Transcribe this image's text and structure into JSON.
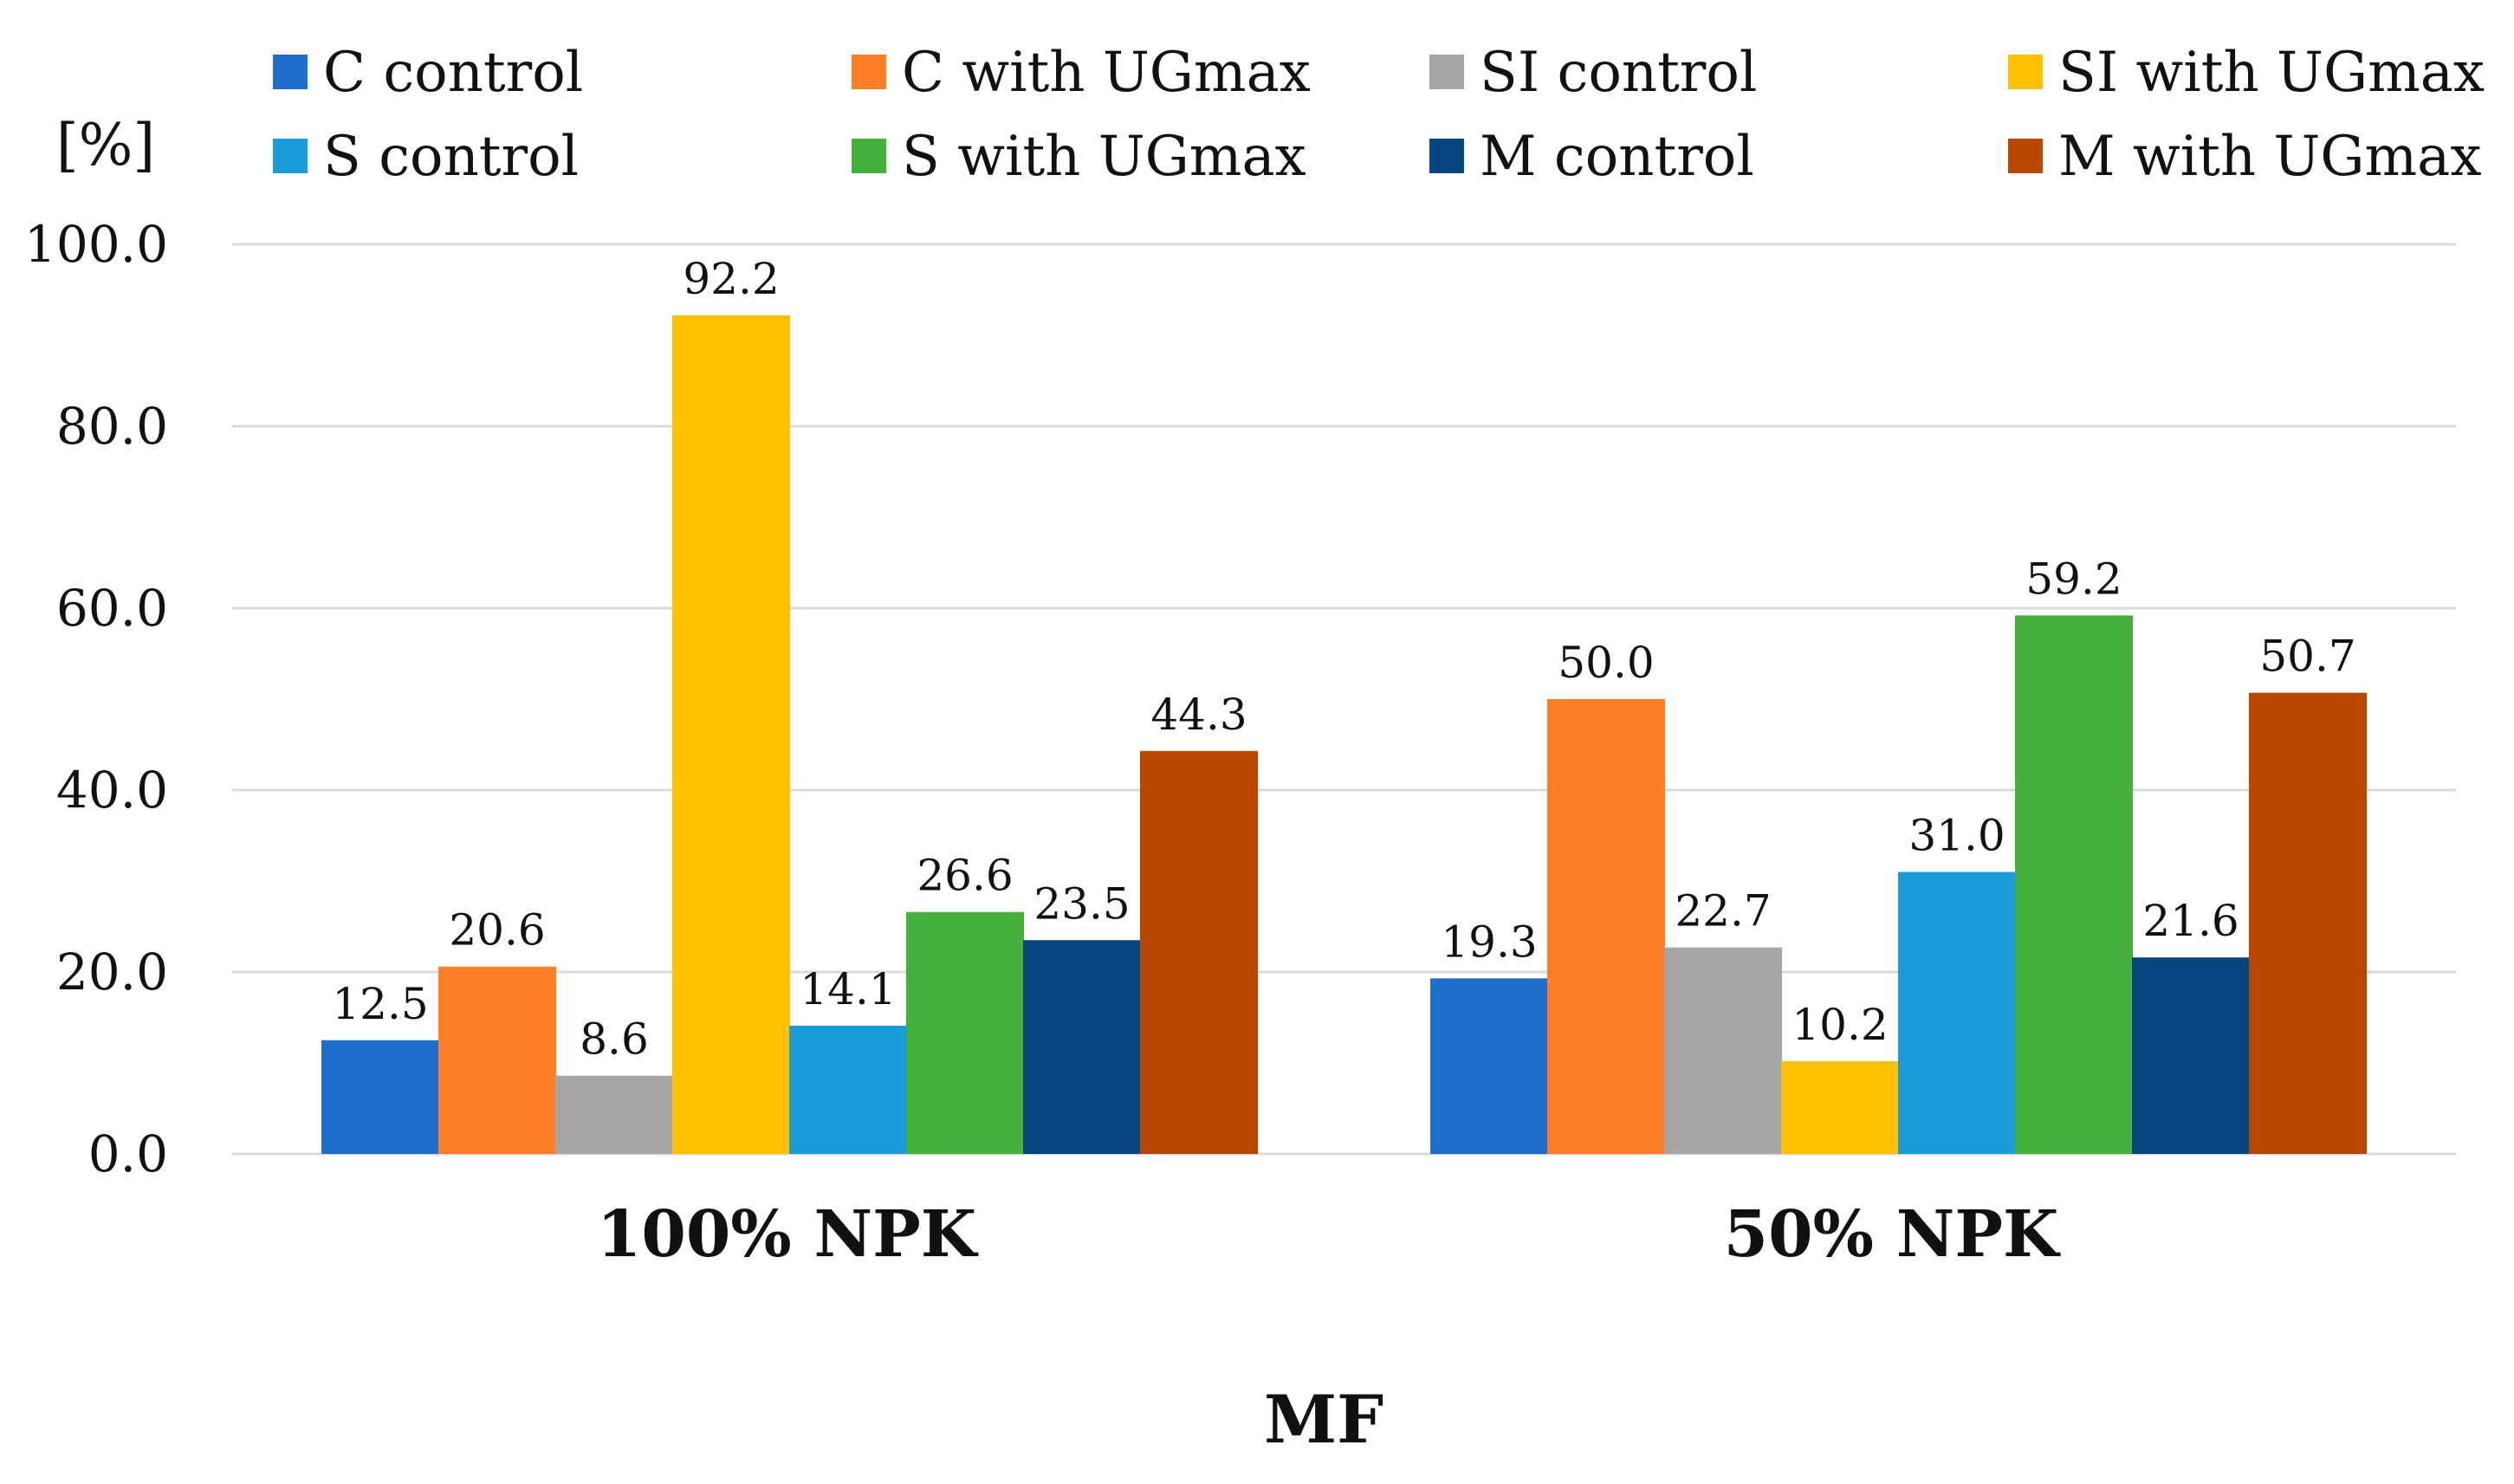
{
  "chart_data": {
    "type": "bar",
    "categories": [
      "100% NPK",
      "50% NPK"
    ],
    "series": [
      {
        "name": "C control",
        "values": [
          12.5,
          19.3
        ],
        "color": "#1E6FCC"
      },
      {
        "name": "C with UGmax",
        "values": [
          20.6,
          50.0
        ],
        "color": "#FF7F27"
      },
      {
        "name": "SI control",
        "values": [
          8.6,
          22.7
        ],
        "color": "#A6A6A6"
      },
      {
        "name": "SI with UGmax",
        "values": [
          92.2,
          10.2
        ],
        "color": "#FFC000"
      },
      {
        "name": "S control",
        "values": [
          14.1,
          31.0
        ],
        "color": "#1A9CD8"
      },
      {
        "name": "S with UGmax",
        "values": [
          26.6,
          59.2
        ],
        "color": "#46B03F"
      },
      {
        "name": "M control",
        "values": [
          23.5,
          21.6
        ],
        "color": "#06457E"
      },
      {
        "name": "M with UGmax",
        "values": [
          44.3,
          50.7
        ],
        "color": "#B84700"
      }
    ],
    "title": "",
    "xlabel": "MF",
    "ylabel": "[%]",
    "ylim": [
      0,
      100
    ],
    "yticks": [
      0,
      20,
      40,
      60,
      80,
      100
    ],
    "ytick_labels": [
      "0.0",
      "20.0",
      "40.0",
      "60.0",
      "80.0",
      "100.0"
    ],
    "data_labels": [
      [
        "12.5",
        "19.3"
      ],
      [
        "20.6",
        "50.0"
      ],
      [
        "8.6",
        "22.7"
      ],
      [
        "92.2",
        "10.2"
      ],
      [
        "14.1",
        "31.0"
      ],
      [
        "26.6",
        "59.2"
      ],
      [
        "23.5",
        "21.6"
      ],
      [
        "44.3",
        "50.7"
      ]
    ],
    "grid": true,
    "legend": "top"
  }
}
